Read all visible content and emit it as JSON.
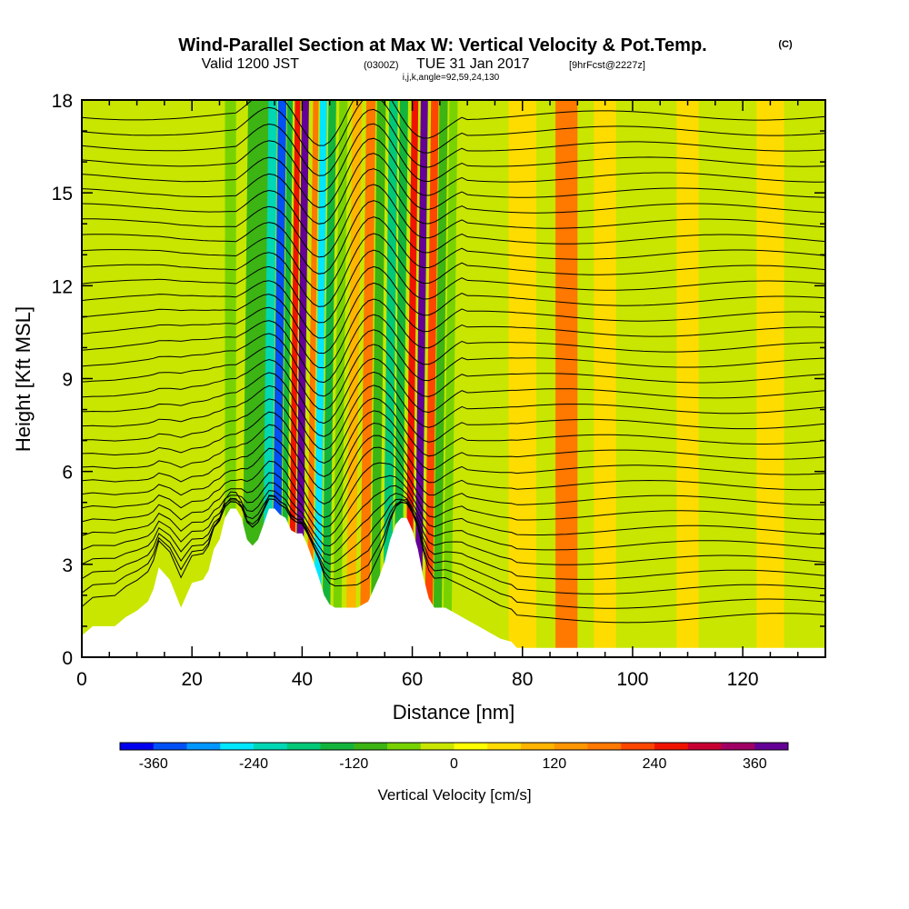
{
  "title": {
    "main": "Wind-Parallel Section at Max W: Vertical Velocity & Pot.Temp.",
    "main_mark": "(C)",
    "valid_label": "Valid 1200 JST",
    "valid_utc": "(0300Z)",
    "valid_date": "TUE 31 Jan 2017",
    "forecast": "[9hrFcst@2227z]",
    "indices": "i,j,k,angle=92,59,24,130"
  },
  "chart_data": {
    "type": "heatmap",
    "xlabel": "Distance [nm]",
    "ylabel": "Height [Kft MSL]",
    "xlim": [
      0,
      135
    ],
    "ylim": [
      0,
      18
    ],
    "xticks": [
      0,
      20,
      40,
      60,
      80,
      100,
      120
    ],
    "yticks": [
      0,
      3,
      6,
      9,
      12,
      15,
      18
    ],
    "colorbar": {
      "label": "Vertical Velocity [cm/s]",
      "tick_values": [
        -360,
        -240,
        -120,
        0,
        120,
        240,
        360
      ],
      "tick_labels": [
        "-360",
        "-240",
        "-120",
        "0",
        "120",
        "240",
        "360"
      ],
      "range": [
        -400,
        400
      ],
      "colors": [
        "#0000ee",
        "#0050f5",
        "#0096ff",
        "#00e6ff",
        "#00d7b4",
        "#00c878",
        "#14b43c",
        "#3cb414",
        "#78d200",
        "#c8e600",
        "#ffff00",
        "#ffdc00",
        "#ffb400",
        "#ff9600",
        "#ff7800",
        "#ff4600",
        "#f01400",
        "#c80032",
        "#a00064",
        "#640096"
      ]
    },
    "terrain_profile": {
      "x": [
        0,
        2,
        6,
        8,
        10,
        12,
        13,
        14,
        16,
        18,
        19,
        20,
        22,
        23,
        24,
        25,
        26,
        27,
        28,
        29,
        30,
        31,
        32,
        33,
        34,
        35,
        36,
        37,
        38,
        39,
        40,
        41,
        42,
        43,
        44,
        45,
        46,
        47,
        48,
        50,
        52,
        53,
        54,
        55,
        56,
        57,
        58,
        59,
        60,
        61,
        62,
        63,
        64,
        66,
        68,
        70,
        72,
        74,
        76,
        78,
        79,
        80,
        82,
        90,
        100,
        110,
        120,
        130,
        135
      ],
      "height": [
        0.7,
        1.0,
        1.0,
        1.3,
        1.5,
        1.8,
        2.2,
        2.9,
        2.5,
        1.6,
        2.0,
        2.4,
        2.5,
        2.8,
        3.5,
        3.8,
        4.5,
        4.8,
        4.8,
        4.5,
        3.8,
        3.6,
        3.8,
        4.3,
        4.8,
        4.8,
        4.6,
        4.5,
        4.1,
        4.0,
        4.0,
        3.6,
        3.1,
        2.6,
        2.0,
        1.7,
        1.6,
        1.6,
        1.6,
        1.6,
        1.8,
        2.2,
        2.6,
        3.1,
        3.8,
        4.3,
        4.5,
        4.5,
        4.1,
        3.5,
        2.6,
        1.9,
        1.6,
        1.6,
        1.4,
        1.2,
        1.0,
        0.8,
        0.6,
        0.5,
        0.3,
        0.3,
        0.3,
        0.3,
        0.3,
        0.3,
        0.3,
        0.3,
        0.3
      ]
    },
    "velocity_bands": [
      {
        "x": 31,
        "w": 4,
        "v": -90
      },
      {
        "x": 33.5,
        "w": 1.6,
        "v": -210
      },
      {
        "x": 35.2,
        "w": 1.5,
        "v": -330
      },
      {
        "x": 36.6,
        "w": 1.0,
        "v": -160
      },
      {
        "x": 38,
        "w": 1.0,
        "v": 260
      },
      {
        "x": 39.4,
        "w": 1.3,
        "v": 370
      },
      {
        "x": 41.3,
        "w": 1.0,
        "v": 160
      },
      {
        "x": 42.7,
        "w": 1.3,
        "v": -260
      },
      {
        "x": 44.3,
        "w": 1.4,
        "v": -160
      },
      {
        "x": 46.3,
        "w": 1.5,
        "v": -60
      },
      {
        "x": 48.8,
        "w": 1.7,
        "v": 110
      },
      {
        "x": 51.3,
        "w": 1.7,
        "v": 160
      },
      {
        "x": 53.2,
        "w": 1.6,
        "v": -120
      },
      {
        "x": 55.4,
        "w": 1.6,
        "v": -200
      },
      {
        "x": 57.3,
        "w": 1.5,
        "v": -150
      },
      {
        "x": 59.3,
        "w": 1.2,
        "v": 240
      },
      {
        "x": 61.0,
        "w": 1.3,
        "v": 360
      },
      {
        "x": 62.9,
        "w": 1.4,
        "v": 210
      },
      {
        "x": 64.5,
        "w": 1.5,
        "v": -90
      },
      {
        "x": 66.3,
        "w": 1.5,
        "v": -60
      },
      {
        "x": 80.0,
        "w": 5.0,
        "v": 60
      },
      {
        "x": 88.0,
        "w": 4.0,
        "v": 160
      },
      {
        "x": 95.0,
        "w": 4.0,
        "v": 60
      },
      {
        "x": 110.0,
        "w": 4.0,
        "v": 60
      },
      {
        "x": 125.0,
        "w": 5.0,
        "v": 70
      },
      {
        "x": 12.0,
        "w": 4.0,
        "v": -35
      },
      {
        "x": 22.0,
        "w": 3.0,
        "v": -30
      },
      {
        "x": 27.0,
        "w": 2.0,
        "v": -45
      }
    ],
    "isentropes_count": 34
  }
}
